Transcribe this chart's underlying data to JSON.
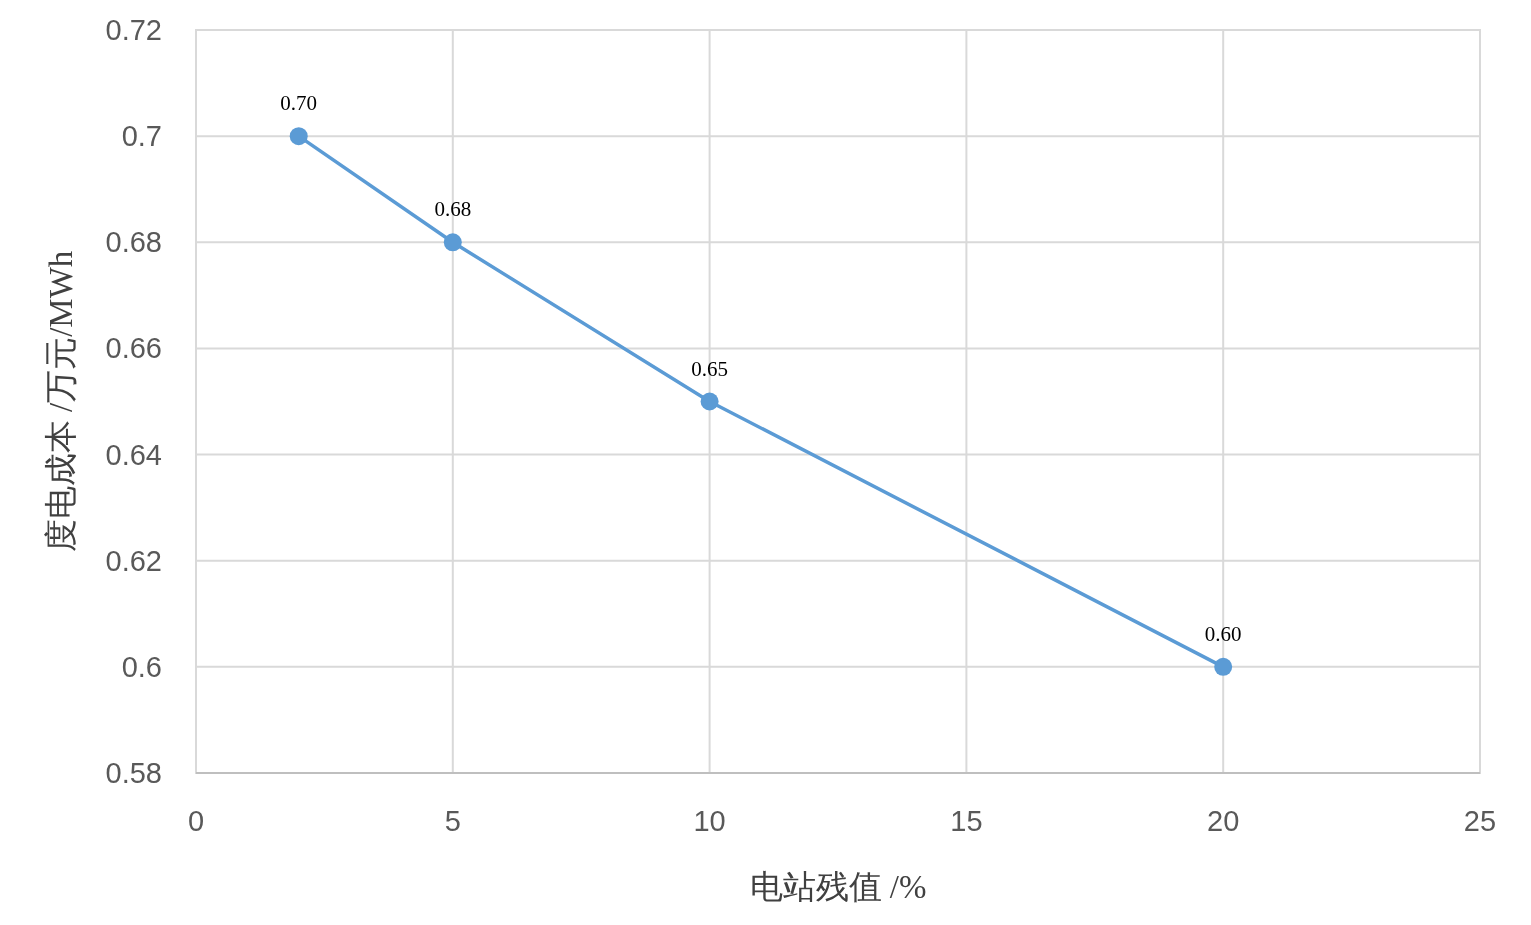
{
  "chart_data": {
    "type": "line",
    "xlabel": "电站残值  /%",
    "ylabel": "度电成本 /万元/MWh",
    "x": [
      2,
      5,
      10,
      20
    ],
    "series": [
      {
        "color": "#5b9bd5",
        "values": [
          0.7,
          0.68,
          0.65,
          0.6
        ],
        "value_labels": [
          "0.70",
          "0.68",
          "0.65",
          "0.60"
        ]
      }
    ],
    "xlim": [
      0,
      25
    ],
    "xticks": [
      0,
      5,
      10,
      15,
      20,
      25
    ],
    "ylim": [
      0.58,
      0.72
    ],
    "yticks": [
      0.58,
      0.6,
      0.62,
      0.64,
      0.66,
      0.68,
      0.7,
      0.72
    ],
    "grid": true,
    "marker": "circle",
    "line_style": "solid"
  }
}
